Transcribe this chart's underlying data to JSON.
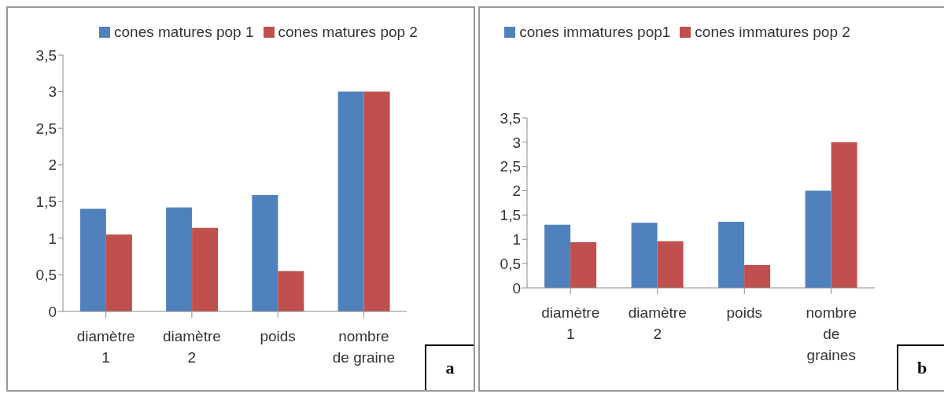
{
  "chart_data": [
    {
      "type": "bar",
      "categories": [
        "diamètre 1",
        "diamètre 2",
        "poids",
        "nombre de graine"
      ],
      "series": [
        {
          "name": "cones matures pop 1",
          "color": "#4f81bd",
          "values": [
            1.4,
            1.42,
            1.59,
            3
          ]
        },
        {
          "name": "cones matures pop 2",
          "color": "#c0504d",
          "values": [
            1.05,
            1.14,
            0.55,
            3
          ]
        }
      ],
      "ylim": [
        0,
        3.5
      ],
      "yticks": [
        0,
        {
          "value": 0.5,
          "label": "0,5"
        },
        1,
        {
          "value": 1.5,
          "label": "1,5"
        },
        2,
        {
          "value": 2.5,
          "label": "2,5"
        },
        3,
        {
          "value": 3.5,
          "label": "3,5"
        }
      ],
      "grid": false,
      "legend": "top",
      "annotations": [
        "a"
      ]
    },
    {
      "type": "bar",
      "categories": [
        "diamètre 1",
        "diamètre 2",
        "poids",
        "nombre de graines"
      ],
      "series": [
        {
          "name": "cones immatures pop1",
          "color": "#4f81bd",
          "values": [
            1.3,
            1.34,
            1.36,
            2
          ]
        },
        {
          "name": "cones immatures pop 2",
          "color": "#c0504d",
          "values": [
            0.94,
            0.96,
            0.47,
            3
          ]
        }
      ],
      "ylim": [
        0,
        3.5
      ],
      "yticks": [
        0,
        {
          "value": 0.5,
          "label": "0,5"
        },
        1,
        {
          "value": 1.5,
          "label": "1,5"
        },
        2,
        {
          "value": 2.5,
          "label": "2,5"
        },
        3,
        {
          "value": 3.5,
          "label": "3,5"
        }
      ],
      "grid": false,
      "legend": "top",
      "annotations": [
        "b"
      ]
    }
  ]
}
